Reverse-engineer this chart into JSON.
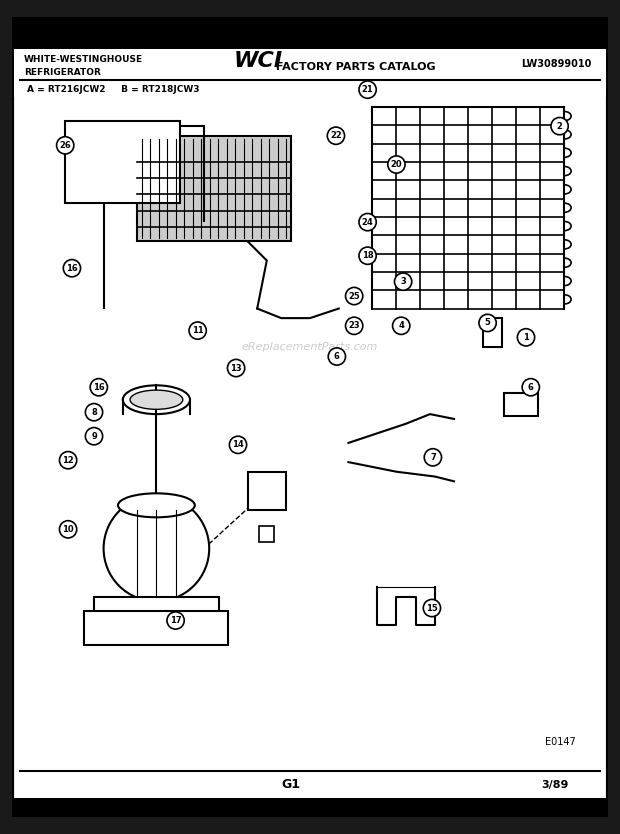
{
  "bg_color": "#ffffff",
  "border_color": "#000000",
  "header": {
    "left_text_line1": "WHITE-WESTINGHOUSE",
    "left_text_line2": "REFRIGERATOR",
    "center_logo": "WCI",
    "center_text": "FACTORY PARTS CATALOG",
    "right_text": "LW30899010"
  },
  "subtitle": "A = RT216JCW2     B = RT218JCW3",
  "footer_left": "G1",
  "footer_right": "3/89",
  "diagram_label": "E0147",
  "watermark": "eReplacementParts.com",
  "fig_width": 6.2,
  "fig_height": 8.34,
  "dpi": 100
}
